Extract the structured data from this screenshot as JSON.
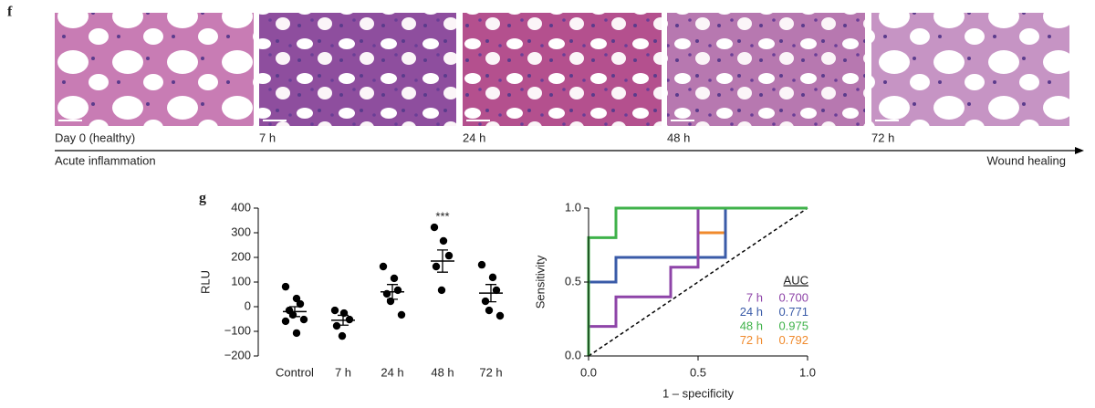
{
  "panel_f": {
    "label": "f",
    "captions": [
      "Day 0 (healthy)",
      "7 h",
      "24 h",
      "48 h",
      "72 h"
    ],
    "timeline": {
      "start": "Acute inflammation",
      "end": "Wound healing"
    }
  },
  "chart_data": [
    {
      "type": "dot",
      "panel_label": "g",
      "ylabel": "RLU",
      "annotation": "***",
      "categories": [
        "Control",
        "7 h",
        "24 h",
        "48 h",
        "72 h"
      ],
      "points": [
        [
          81,
          33,
          11,
          -15,
          -33,
          -52,
          -59,
          -107
        ],
        [
          -15,
          -26,
          -52,
          -78,
          -119
        ],
        [
          163,
          115,
          67,
          52,
          22,
          -33
        ],
        [
          322,
          267,
          207,
          163,
          67
        ],
        [
          170,
          119,
          67,
          22,
          -15,
          -37
        ]
      ],
      "means": [
        -20,
        -55,
        60,
        185,
        55
      ],
      "sems": [
        20,
        20,
        30,
        45,
        35
      ],
      "color": "#000000",
      "ylim": [
        -200,
        400
      ],
      "yticks": [
        {
          "value": -200,
          "label": "−200"
        },
        {
          "value": -100,
          "label": "−100"
        },
        0,
        100,
        200,
        300,
        400
      ]
    },
    {
      "type": "roc",
      "xlabel": "1 – specificity",
      "ylabel": "Sensitivity",
      "legend_title": "AUC",
      "xlim": [
        0,
        1
      ],
      "ylim": [
        0,
        1
      ],
      "xticks": [
        {
          "value": 0,
          "label": "0.0"
        },
        {
          "value": 0.5,
          "label": "0.5"
        },
        {
          "value": 1,
          "label": "1.0"
        }
      ],
      "yticks": [
        {
          "value": 0,
          "label": "0.0"
        },
        {
          "value": 0.5,
          "label": "0.5"
        },
        {
          "value": 1,
          "label": "1.0"
        }
      ],
      "series": [
        {
          "name": "7 h",
          "color": "#8e44a8",
          "auc": 0.7,
          "auc_label": "0.700",
          "x": [
            0,
            0,
            0.125,
            0.125,
            0.375,
            0.375,
            0.5,
            0.5,
            1
          ],
          "y": [
            0,
            0.2,
            0.2,
            0.4,
            0.4,
            0.6,
            0.6,
            1,
            1
          ]
        },
        {
          "name": "24 h",
          "color": "#3a5ba8",
          "auc": 0.771,
          "auc_label": "0.771",
          "x": [
            0,
            0,
            0.125,
            0.125,
            0.625,
            0.625,
            1
          ],
          "y": [
            0,
            0.5,
            0.5,
            0.667,
            0.667,
            1,
            1
          ]
        },
        {
          "name": "48 h",
          "color": "#3fb24a",
          "auc": 0.975,
          "auc_label": "0.975",
          "x": [
            0,
            0,
            0.125,
            0.125,
            1
          ],
          "y": [
            0,
            0.8,
            0.8,
            1,
            1
          ]
        },
        {
          "name": "72 h",
          "color": "#f08a2c",
          "auc": 0.792,
          "auc_label": "0.792",
          "x": [
            0,
            0,
            0.125,
            0.125,
            0.5,
            0.5,
            0.625,
            0.625,
            1
          ],
          "y": [
            0,
            0.5,
            0.5,
            0.667,
            0.667,
            0.833,
            0.833,
            1,
            1
          ]
        }
      ]
    }
  ]
}
